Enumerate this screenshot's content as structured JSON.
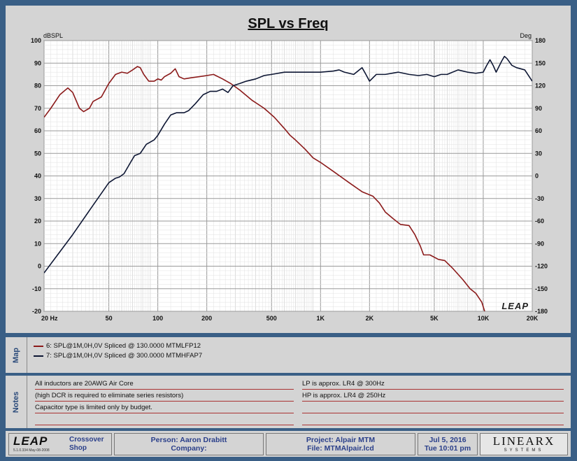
{
  "chart_data": {
    "type": "line",
    "title": "SPL vs Freq",
    "left_axis_label": "dBSPL",
    "right_axis_label": "Deg",
    "x_scale": "log",
    "xlim": [
      20,
      20000
    ],
    "ylim_left": [
      -20,
      100
    ],
    "ylim_right": [
      -180,
      180
    ],
    "x_ticks": [
      {
        "value": 20,
        "label": "20  Hz"
      },
      {
        "value": 50,
        "label": "50"
      },
      {
        "value": 100,
        "label": "100"
      },
      {
        "value": 200,
        "label": "200"
      },
      {
        "value": 500,
        "label": "500"
      },
      {
        "value": 1000,
        "label": "1K"
      },
      {
        "value": 2000,
        "label": "2K"
      },
      {
        "value": 5000,
        "label": "5K"
      },
      {
        "value": 10000,
        "label": "10K"
      },
      {
        "value": 20000,
        "label": "20K"
      }
    ],
    "y_ticks_left": [
      "100",
      "90",
      "80",
      "70",
      "60",
      "50",
      "40",
      "30",
      "20",
      "10",
      "0",
      "-10",
      "-20"
    ],
    "y_ticks_right": [
      "180",
      "150",
      "120",
      "90",
      "60",
      "30",
      "0",
      "-30",
      "-60",
      "-90",
      "-120",
      "-150",
      "-180"
    ],
    "grid": true,
    "watermark": "LEAP",
    "series": [
      {
        "name": "6: SPL@1M,0H,0V Spliced @ 130.0000 MTMLFP12",
        "color": "#8b1a1a",
        "points": [
          [
            20,
            66
          ],
          [
            22,
            70
          ],
          [
            25,
            76
          ],
          [
            28,
            79
          ],
          [
            30,
            77
          ],
          [
            33,
            70
          ],
          [
            35,
            68.5
          ],
          [
            38,
            70
          ],
          [
            40,
            73
          ],
          [
            45,
            75
          ],
          [
            50,
            81
          ],
          [
            55,
            85
          ],
          [
            60,
            86
          ],
          [
            65,
            85.5
          ],
          [
            70,
            87
          ],
          [
            75,
            88.5
          ],
          [
            78,
            88
          ],
          [
            82,
            85
          ],
          [
            88,
            82
          ],
          [
            95,
            82
          ],
          [
            100,
            83
          ],
          [
            105,
            82.5
          ],
          [
            110,
            84
          ],
          [
            120,
            85.5
          ],
          [
            128,
            87.5
          ],
          [
            135,
            84
          ],
          [
            145,
            83
          ],
          [
            160,
            83.5
          ],
          [
            180,
            84
          ],
          [
            200,
            84.5
          ],
          [
            220,
            85
          ],
          [
            250,
            83
          ],
          [
            280,
            81
          ],
          [
            320,
            78
          ],
          [
            380,
            73.5
          ],
          [
            450,
            70
          ],
          [
            520,
            66
          ],
          [
            600,
            61
          ],
          [
            650,
            58
          ],
          [
            700,
            56
          ],
          [
            800,
            52
          ],
          [
            900,
            48
          ],
          [
            1000,
            46
          ],
          [
            1200,
            42
          ],
          [
            1500,
            37
          ],
          [
            1800,
            33
          ],
          [
            2100,
            31
          ],
          [
            2300,
            28
          ],
          [
            2500,
            24
          ],
          [
            2800,
            21
          ],
          [
            3100,
            18.5
          ],
          [
            3500,
            18
          ],
          [
            3800,
            14
          ],
          [
            4100,
            9
          ],
          [
            4300,
            5
          ],
          [
            4700,
            5
          ],
          [
            5300,
            3
          ],
          [
            5800,
            2.5
          ],
          [
            6500,
            -1
          ],
          [
            7500,
            -6
          ],
          [
            8300,
            -10
          ],
          [
            9000,
            -12
          ],
          [
            9800,
            -16
          ],
          [
            10200,
            -20
          ]
        ]
      },
      {
        "name": "7: SPL@1M,0H,0V Spliced @ 300.0000 MTMHFAP7",
        "color": "#0d1633",
        "points": [
          [
            20,
            -3
          ],
          [
            30,
            14
          ],
          [
            40,
            27
          ],
          [
            50,
            37
          ],
          [
            55,
            39
          ],
          [
            58,
            39.5
          ],
          [
            62,
            41
          ],
          [
            68,
            46
          ],
          [
            72,
            49
          ],
          [
            78,
            50
          ],
          [
            85,
            54
          ],
          [
            95,
            56
          ],
          [
            100,
            58
          ],
          [
            110,
            63
          ],
          [
            120,
            67
          ],
          [
            130,
            68
          ],
          [
            145,
            68
          ],
          [
            155,
            69
          ],
          [
            170,
            72
          ],
          [
            190,
            76
          ],
          [
            210,
            77.5
          ],
          [
            230,
            77.5
          ],
          [
            250,
            78.5
          ],
          [
            270,
            77
          ],
          [
            290,
            80
          ],
          [
            320,
            81
          ],
          [
            350,
            82
          ],
          [
            400,
            83
          ],
          [
            450,
            84.5
          ],
          [
            500,
            85
          ],
          [
            600,
            86
          ],
          [
            700,
            86
          ],
          [
            800,
            86
          ],
          [
            900,
            86
          ],
          [
            1000,
            86
          ],
          [
            1200,
            86.5
          ],
          [
            1300,
            87
          ],
          [
            1400,
            86
          ],
          [
            1600,
            85
          ],
          [
            1800,
            88
          ],
          [
            1900,
            85
          ],
          [
            2000,
            82
          ],
          [
            2200,
            85
          ],
          [
            2500,
            85
          ],
          [
            3000,
            86
          ],
          [
            3500,
            85
          ],
          [
            4000,
            84.5
          ],
          [
            4500,
            85
          ],
          [
            5000,
            84
          ],
          [
            5500,
            85
          ],
          [
            6000,
            85
          ],
          [
            7000,
            87
          ],
          [
            8000,
            86
          ],
          [
            9000,
            85.5
          ],
          [
            10000,
            86
          ],
          [
            10500,
            89
          ],
          [
            11000,
            91.5
          ],
          [
            11500,
            89
          ],
          [
            12000,
            86
          ],
          [
            13000,
            91
          ],
          [
            13500,
            93
          ],
          [
            14000,
            92
          ],
          [
            15000,
            89
          ],
          [
            16000,
            88
          ],
          [
            18000,
            87
          ],
          [
            20000,
            82
          ]
        ]
      }
    ]
  },
  "map": {
    "tab_label": "Map",
    "entries": [
      {
        "label": "6: SPL@1M,0H,0V Spliced @ 130.0000 MTMLFP12",
        "color": "#8b1a1a"
      },
      {
        "label": "7: SPL@1M,0H,0V Spliced @ 300.0000 MTMHFAP7",
        "color": "#0d1633"
      }
    ]
  },
  "notes": {
    "tab_label": "Notes",
    "left": [
      "All inductors are 20AWG Air Core",
      "(high DCR is required to eliminate series resistors)",
      "Capacitor type is limited only by budget.",
      ""
    ],
    "right": [
      "LP is approx. LR4 @ 300Hz",
      "HP is approx. LR4 @ 250Hz",
      "",
      ""
    ]
  },
  "footer": {
    "logo": "LEAP",
    "version": "5.1.0.334   May-08-2008",
    "product_line1": "Crossover",
    "product_line2": "Shop",
    "person": "Person: Aaron Drabitt",
    "company": "Company:",
    "project": "Project: Alpair MTM",
    "file": "File: MTMAlpair.lcd",
    "date": "Jul  5, 2016",
    "time": "Tue 10:01 pm",
    "brand": "LINEARX",
    "brand_sub": "SYSTEMS"
  }
}
